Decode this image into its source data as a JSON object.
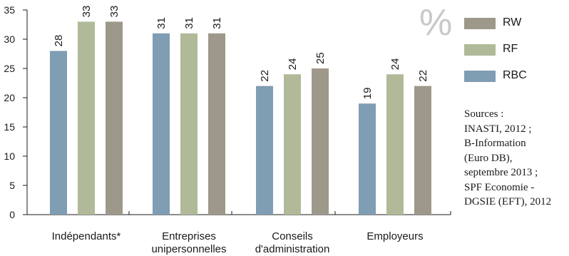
{
  "chart_data": {
    "type": "bar",
    "unit": "%",
    "categories": [
      [
        "Indépendants*"
      ],
      [
        "Entreprises",
        "unipersonnelles"
      ],
      [
        "Conseils",
        "d'administration"
      ],
      [
        "Employeurs"
      ]
    ],
    "series": [
      {
        "name": "RBC",
        "color": "#7f9db3",
        "values": [
          28,
          31,
          22,
          19
        ]
      },
      {
        "name": "RF",
        "color": "#b0ba98",
        "values": [
          33,
          31,
          24,
          24
        ]
      },
      {
        "name": "RW",
        "color": "#9d988a",
        "values": [
          33,
          31,
          25,
          22
        ]
      }
    ],
    "ylim": [
      0,
      35
    ],
    "yticks": [
      0,
      5,
      10,
      15,
      20,
      25,
      30,
      35
    ],
    "legend_order": [
      "RW",
      "RF",
      "RBC"
    ],
    "grid": false
  },
  "sources": [
    "Sources :",
    "INASTI, 2012 ;",
    "B-Information",
    "(Euro DB),",
    "septembre 2013 ;",
    "SPF Economie -",
    "DGSIE (EFT), 2012"
  ]
}
